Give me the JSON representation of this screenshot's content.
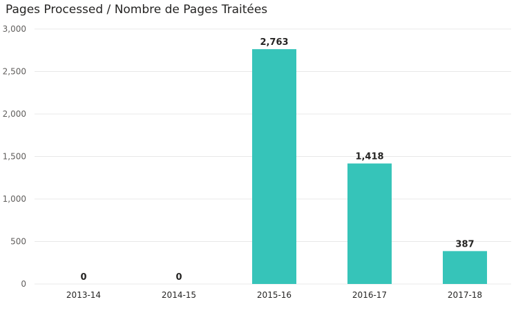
{
  "chart_data": {
    "type": "bar",
    "title": "Pages Processed / Nombre de Pages Traitées",
    "categories": [
      "2013-14",
      "2014-15",
      "2015-16",
      "2016-17",
      "2017-18"
    ],
    "values": [
      0,
      0,
      2763,
      1418,
      387
    ],
    "data_labels": [
      "0",
      "0",
      "2,763",
      "1,418",
      "387"
    ],
    "y_ticks": [
      "0",
      "500",
      "1,000",
      "1,500",
      "2,000",
      "2,500",
      "3,000"
    ],
    "ylim": [
      0,
      3000
    ],
    "xlabel": "",
    "ylabel": "",
    "grid": true,
    "bar_color": "#36c4b9"
  }
}
